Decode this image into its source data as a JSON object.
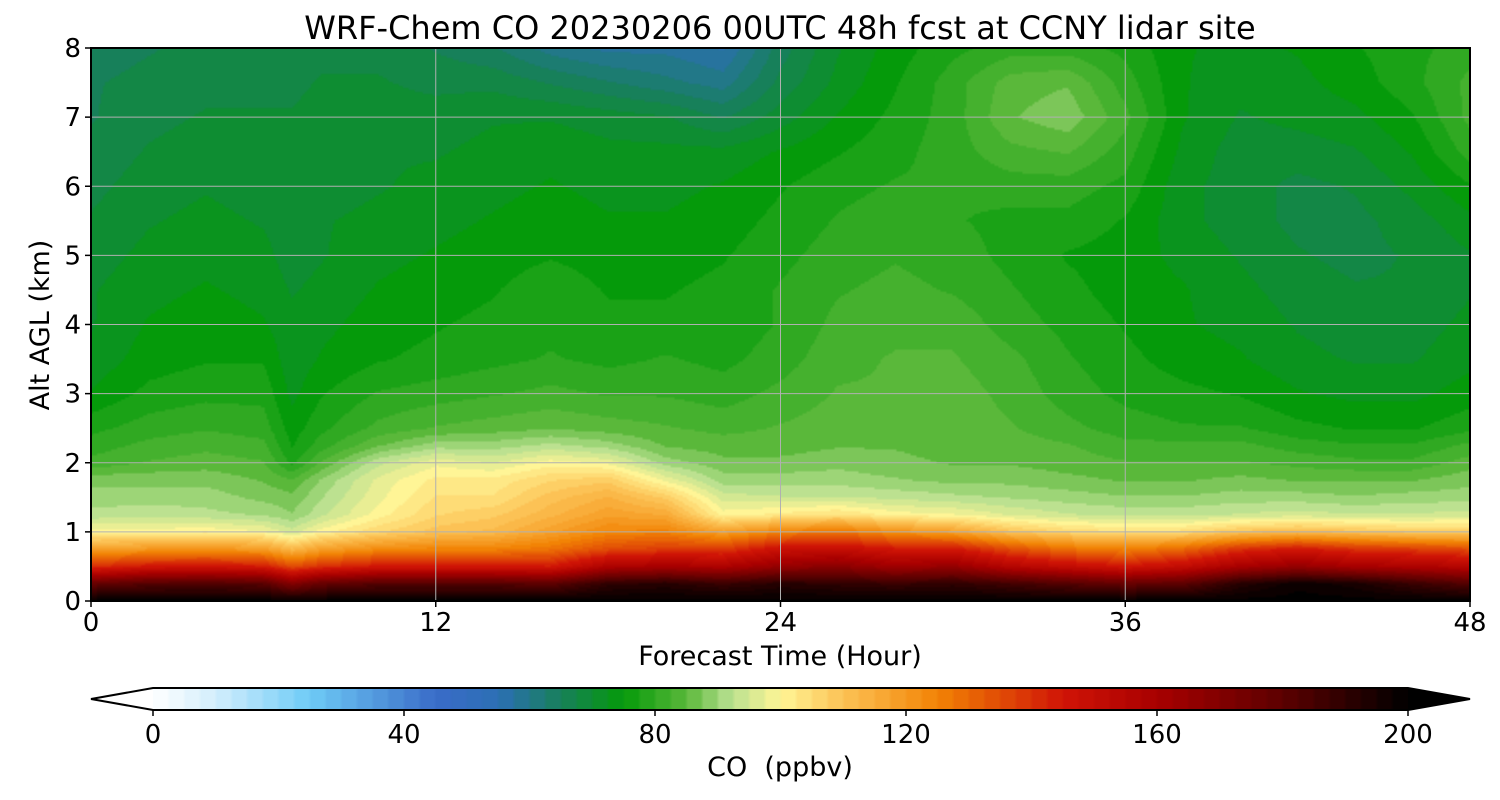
{
  "chart_data": {
    "type": "heatmap",
    "title": "WRF-Chem CO  20230206 00UTC 48h fcst at CCNY lidar site",
    "xlabel": "Forecast Time (Hour)",
    "ylabel": "Alt AGL (km)",
    "xlim": [
      0,
      48
    ],
    "ylim": [
      0,
      8
    ],
    "x_ticks": [
      0,
      12,
      24,
      36,
      48
    ],
    "y_ticks": [
      0,
      1,
      2,
      3,
      4,
      5,
      6,
      7,
      8
    ],
    "grid": true,
    "colorbar": {
      "label": "CO  (ppbv)",
      "orientation": "horizontal",
      "location": "bottom",
      "range": [
        0,
        200
      ],
      "ticks": [
        0,
        40,
        80,
        120,
        160,
        200
      ],
      "extend": "both",
      "stops": [
        {
          "value": 0,
          "color": "#ffffff"
        },
        {
          "value": 10,
          "color": "#d2eefc"
        },
        {
          "value": 25,
          "color": "#6ecbf6"
        },
        {
          "value": 45,
          "color": "#3a6cc8"
        },
        {
          "value": 55,
          "color": "#2c6fb5"
        },
        {
          "value": 65,
          "color": "#17805a"
        },
        {
          "value": 75,
          "color": "#059a0a"
        },
        {
          "value": 85,
          "color": "#5ab83a"
        },
        {
          "value": 92,
          "color": "#b8e090"
        },
        {
          "value": 100,
          "color": "#fff596"
        },
        {
          "value": 110,
          "color": "#fcc255"
        },
        {
          "value": 125,
          "color": "#f28305"
        },
        {
          "value": 145,
          "color": "#d01406"
        },
        {
          "value": 160,
          "color": "#a80000"
        },
        {
          "value": 180,
          "color": "#5c0000"
        },
        {
          "value": 200,
          "color": "#000000"
        }
      ],
      "under_color": "#ffffff",
      "over_color": "#000000"
    },
    "times": [
      0,
      2,
      4,
      6,
      7,
      8,
      10,
      12,
      14,
      16,
      18,
      20,
      22,
      24,
      26,
      28,
      30,
      32,
      34,
      36,
      38,
      40,
      42,
      44,
      46,
      48
    ],
    "heights": [
      0,
      0.25,
      0.5,
      0.75,
      1,
      1.25,
      1.5,
      1.75,
      2,
      2.25,
      2.5,
      3,
      3.5,
      4,
      4.5,
      5,
      5.5,
      6,
      6.5,
      7,
      7.5,
      8
    ],
    "values": [
      [
        200,
        200,
        200,
        200,
        200,
        200,
        200,
        200,
        200,
        200,
        200,
        200,
        200,
        200,
        200,
        200,
        200,
        200,
        200,
        200,
        200,
        200,
        200,
        200,
        200,
        200
      ],
      [
        178,
        182,
        183,
        181,
        170,
        178,
        182,
        182,
        182,
        180,
        190,
        192,
        188,
        192,
        190,
        188,
        190,
        186,
        182,
        178,
        180,
        192,
        198,
        195,
        188,
        182
      ],
      [
        140,
        145,
        146,
        144,
        135,
        140,
        145,
        145,
        145,
        144,
        158,
        160,
        158,
        165,
        168,
        162,
        165,
        155,
        150,
        145,
        150,
        160,
        165,
        160,
        158,
        155
      ],
      [
        118,
        120,
        121,
        119,
        112,
        118,
        123,
        125,
        125,
        128,
        135,
        138,
        138,
        148,
        150,
        145,
        145,
        135,
        128,
        125,
        130,
        140,
        145,
        140,
        138,
        135
      ],
      [
        100,
        100,
        101,
        99,
        95,
        100,
        106,
        110,
        112,
        118,
        124,
        125,
        118,
        125,
        128,
        122,
        118,
        110,
        106,
        104,
        105,
        110,
        112,
        110,
        108,
        108
      ],
      [
        92,
        93,
        92,
        91,
        89,
        93,
        100,
        106,
        108,
        113,
        118,
        116,
        100,
        102,
        104,
        100,
        99,
        96,
        94,
        93,
        93,
        94,
        95,
        94,
        94,
        95
      ],
      [
        90,
        90,
        90,
        88,
        87,
        91,
        98,
        104,
        104,
        110,
        114,
        108,
        95,
        94,
        94,
        93,
        92,
        91,
        90,
        89,
        89,
        90,
        90,
        89,
        90,
        90
      ],
      [
        88,
        88,
        88,
        86,
        84,
        89,
        97,
        102,
        102,
        106,
        108,
        98,
        90,
        90,
        90,
        89,
        88,
        88,
        87,
        86,
        86,
        87,
        86,
        86,
        86,
        88
      ],
      [
        82,
        84,
        85,
        84,
        78,
        84,
        93,
        98,
        96,
        100,
        98,
        90,
        87,
        87,
        88,
        87,
        86,
        86,
        85,
        84,
        84,
        84,
        83,
        82,
        82,
        85
      ],
      [
        80,
        82,
        83,
        82,
        76,
        80,
        86,
        90,
        90,
        92,
        90,
        86,
        85,
        85,
        86,
        86,
        85,
        85,
        84,
        82,
        82,
        82,
        80,
        79,
        79,
        82
      ],
      [
        78,
        80,
        81,
        80,
        75,
        78,
        82,
        84,
        85,
        86,
        85,
        84,
        83,
        84,
        85,
        85,
        85,
        84,
        82,
        80,
        79,
        79,
        77,
        76,
        76,
        78
      ],
      [
        74,
        77,
        78,
        78,
        73,
        76,
        79,
        80,
        81,
        82,
        81,
        81,
        80,
        82,
        84,
        84,
        85,
        83,
        80,
        78,
        77,
        76,
        74,
        73,
        73,
        75
      ],
      [
        72,
        75,
        76,
        76,
        72,
        74,
        76,
        77,
        78,
        79,
        78,
        79,
        78,
        80,
        83,
        84,
        84,
        82,
        79,
        77,
        75,
        74,
        72,
        71,
        71,
        73
      ],
      [
        71,
        74,
        75,
        74,
        72,
        73,
        75,
        76,
        77,
        78,
        77,
        77,
        77,
        79,
        82,
        83,
        83,
        80,
        78,
        76,
        74,
        73,
        71,
        70,
        70,
        72
      ],
      [
        71,
        73,
        74,
        73,
        71,
        72,
        74,
        75,
        76,
        78,
        76,
        76,
        77,
        79,
        81,
        82,
        81,
        79,
        77,
        75,
        74,
        72,
        70,
        69,
        69,
        71
      ],
      [
        70,
        72,
        73,
        72,
        70,
        71,
        73,
        74,
        75,
        76,
        75,
        75,
        76,
        78,
        80,
        81,
        80,
        78,
        76,
        75,
        73,
        71,
        69,
        68,
        69,
        71
      ],
      [
        69,
        71,
        72,
        71,
        70,
        71,
        72,
        73,
        74,
        75,
        74,
        74,
        75,
        77,
        79,
        80,
        79,
        78,
        78,
        76,
        72,
        70,
        68,
        68,
        70,
        73
      ],
      [
        68,
        70,
        71,
        70,
        70,
        70,
        71,
        72,
        73,
        74,
        73,
        73,
        74,
        76,
        78,
        79,
        79,
        80,
        80,
        78,
        72,
        70,
        68,
        69,
        72,
        76
      ],
      [
        67,
        69,
        70,
        70,
        69,
        70,
        71,
        71,
        72,
        73,
        72,
        72,
        72,
        74,
        76,
        78,
        80,
        83,
        84,
        80,
        73,
        70,
        70,
        71,
        74,
        80
      ],
      [
        66,
        68,
        69,
        69,
        69,
        70,
        70,
        70,
        71,
        71,
        70,
        69,
        66,
        70,
        74,
        77,
        80,
        86,
        88,
        82,
        74,
        71,
        72,
        73,
        76,
        82
      ],
      [
        66,
        67,
        68,
        68,
        68,
        69,
        69,
        68,
        68,
        66,
        64,
        62,
        60,
        67,
        72,
        76,
        80,
        85,
        86,
        80,
        74,
        72,
        73,
        75,
        78,
        82
      ],
      [
        65,
        66,
        67,
        67,
        67,
        68,
        68,
        66,
        64,
        60,
        58,
        58,
        56,
        65,
        71,
        75,
        78,
        80,
        80,
        78,
        74,
        73,
        74,
        76,
        78,
        80
      ]
    ]
  }
}
